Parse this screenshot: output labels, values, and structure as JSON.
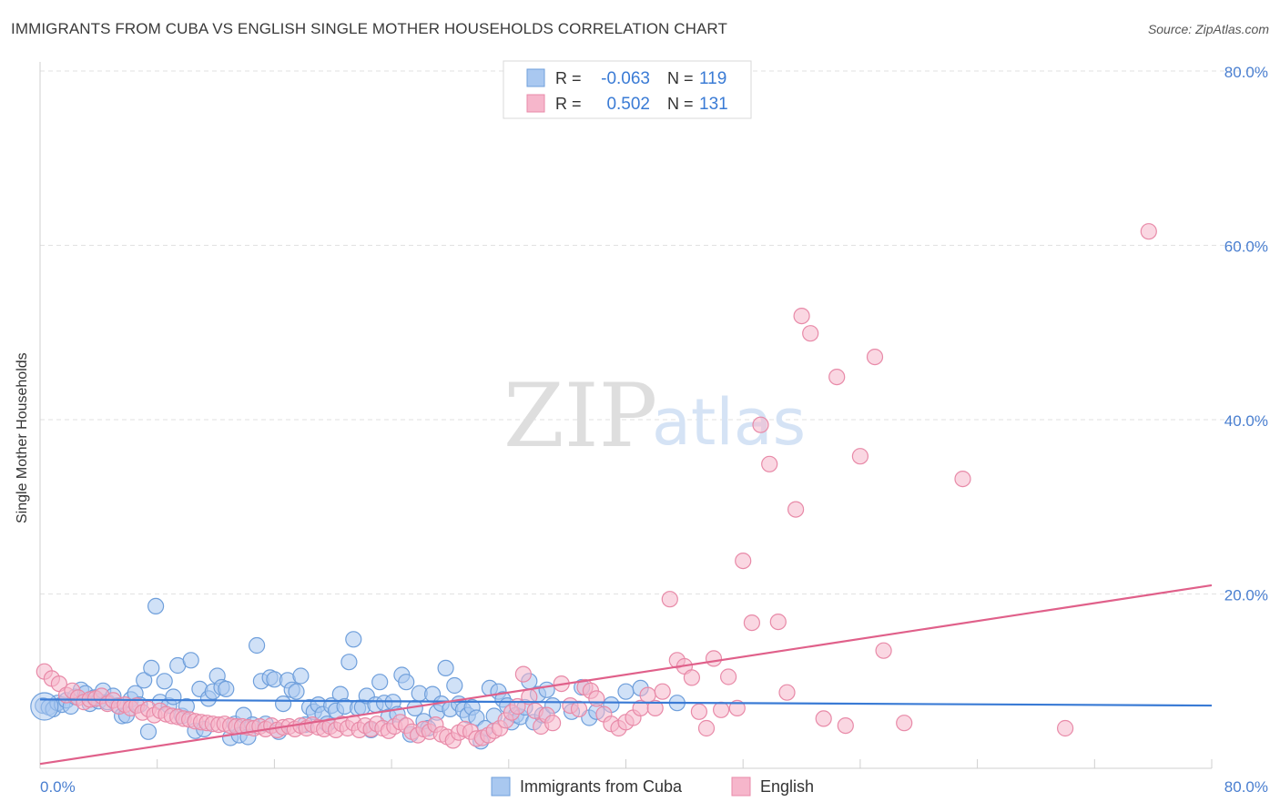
{
  "title": "IMMIGRANTS FROM CUBA VS ENGLISH SINGLE MOTHER HOUSEHOLDS CORRELATION CHART",
  "source": "Source: ZipAtlas.com",
  "watermark": {
    "zip": "ZIP",
    "atlas": "atlas"
  },
  "colors": {
    "blue_fill": "#a9c8f0",
    "blue_stroke": "#6f9fdb",
    "blue_line": "#3a7bd5",
    "pink_fill": "#f6b6cb",
    "pink_stroke": "#e88aa8",
    "pink_line": "#e0608a",
    "axis_text": "#4a7fd0",
    "grid": "#e2e2e2"
  },
  "legend": {
    "rows": [
      {
        "r_label": "R =",
        "r_value": "-0.063",
        "n_label": "N =",
        "n_value": "119"
      },
      {
        "r_label": "R =",
        "r_value": "0.502",
        "n_label": "N =",
        "n_value": "131"
      }
    ]
  },
  "bottom_legend": [
    "Immigrants from Cuba",
    "English"
  ],
  "chart_data": {
    "type": "scatter",
    "title": "IMMIGRANTS FROM CUBA VS ENGLISH SINGLE MOTHER HOUSEHOLDS CORRELATION CHART",
    "xlabel": "",
    "ylabel": "Single Mother Households",
    "xlim": [
      0,
      80
    ],
    "ylim": [
      0,
      80
    ],
    "x_ticks": [
      "0.0%",
      "80.0%"
    ],
    "y_ticks": [
      "20.0%",
      "40.0%",
      "60.0%",
      "80.0%"
    ],
    "y_tick_values": [
      20,
      40,
      60,
      80
    ],
    "legend_position": "top-center",
    "series": [
      {
        "name": "Immigrants from Cuba",
        "trend": {
          "x": [
            0,
            80
          ],
          "y": [
            7.9,
            7.2
          ]
        },
        "points": [
          [
            0.2,
            7.2
          ],
          [
            0.6,
            7.0
          ],
          [
            0.9,
            6.8
          ],
          [
            1.2,
            7.5
          ],
          [
            1.5,
            7.3
          ],
          [
            1.8,
            7.8
          ],
          [
            2.1,
            7.1
          ],
          [
            2.4,
            8.2
          ],
          [
            2.8,
            9.0
          ],
          [
            3.1,
            8.6
          ],
          [
            3.4,
            7.4
          ],
          [
            3.7,
            8.1
          ],
          [
            4.0,
            7.7
          ],
          [
            4.3,
            8.9
          ],
          [
            4.6,
            7.6
          ],
          [
            5.0,
            8.3
          ],
          [
            5.3,
            7.2
          ],
          [
            5.6,
            6.0
          ],
          [
            5.9,
            6.1
          ],
          [
            6.2,
            7.9
          ],
          [
            6.5,
            8.6
          ],
          [
            6.8,
            7.3
          ],
          [
            7.1,
            10.1
          ],
          [
            7.4,
            4.2
          ],
          [
            7.6,
            11.5
          ],
          [
            7.9,
            18.6
          ],
          [
            8.2,
            7.6
          ],
          [
            8.5,
            10.0
          ],
          [
            8.8,
            7.2
          ],
          [
            9.1,
            8.2
          ],
          [
            9.4,
            11.8
          ],
          [
            9.7,
            6.0
          ],
          [
            10.0,
            7.1
          ],
          [
            10.3,
            12.4
          ],
          [
            10.6,
            4.3
          ],
          [
            10.9,
            9.1
          ],
          [
            11.2,
            4.5
          ],
          [
            11.5,
            8.0
          ],
          [
            11.8,
            8.8
          ],
          [
            12.1,
            10.6
          ],
          [
            12.4,
            9.3
          ],
          [
            12.7,
            9.1
          ],
          [
            13.0,
            3.5
          ],
          [
            13.3,
            5.1
          ],
          [
            13.6,
            3.8
          ],
          [
            13.9,
            6.1
          ],
          [
            14.2,
            3.6
          ],
          [
            14.5,
            5.0
          ],
          [
            14.8,
            14.1
          ],
          [
            15.1,
            10.0
          ],
          [
            15.4,
            5.1
          ],
          [
            15.7,
            10.4
          ],
          [
            16.0,
            10.2
          ],
          [
            16.3,
            4.2
          ],
          [
            16.6,
            7.4
          ],
          [
            16.9,
            10.1
          ],
          [
            17.2,
            9.0
          ],
          [
            17.5,
            8.8
          ],
          [
            17.8,
            10.6
          ],
          [
            18.1,
            5.0
          ],
          [
            18.4,
            7.0
          ],
          [
            18.7,
            6.5
          ],
          [
            19.0,
            7.3
          ],
          [
            19.3,
            6.2
          ],
          [
            19.6,
            5.1
          ],
          [
            19.9,
            7.2
          ],
          [
            20.2,
            6.6
          ],
          [
            20.5,
            8.5
          ],
          [
            20.8,
            7.1
          ],
          [
            21.1,
            12.2
          ],
          [
            21.4,
            14.8
          ],
          [
            21.7,
            6.9
          ],
          [
            22.0,
            7.0
          ],
          [
            22.3,
            8.3
          ],
          [
            22.6,
            4.4
          ],
          [
            22.9,
            7.3
          ],
          [
            23.2,
            9.9
          ],
          [
            23.5,
            7.5
          ],
          [
            23.8,
            5.9
          ],
          [
            24.1,
            7.6
          ],
          [
            24.4,
            6.2
          ],
          [
            24.7,
            10.7
          ],
          [
            25.0,
            9.9
          ],
          [
            25.3,
            3.9
          ],
          [
            25.6,
            6.9
          ],
          [
            25.9,
            8.6
          ],
          [
            26.2,
            5.4
          ],
          [
            26.5,
            4.6
          ],
          [
            26.8,
            8.5
          ],
          [
            27.1,
            6.4
          ],
          [
            27.4,
            7.4
          ],
          [
            27.7,
            11.5
          ],
          [
            28.0,
            6.8
          ],
          [
            28.3,
            9.5
          ],
          [
            28.6,
            7.4
          ],
          [
            28.9,
            6.7
          ],
          [
            29.2,
            6.1
          ],
          [
            29.5,
            7.0
          ],
          [
            29.8,
            5.8
          ],
          [
            30.1,
            3.1
          ],
          [
            30.4,
            4.6
          ],
          [
            30.7,
            9.2
          ],
          [
            31.0,
            6.0
          ],
          [
            31.3,
            8.8
          ],
          [
            31.6,
            7.9
          ],
          [
            31.9,
            7.2
          ],
          [
            32.2,
            5.3
          ],
          [
            32.5,
            6.1
          ],
          [
            32.8,
            5.9
          ],
          [
            33.1,
            7.0
          ],
          [
            33.4,
            10.0
          ],
          [
            33.7,
            5.3
          ],
          [
            34.0,
            8.5
          ],
          [
            34.3,
            6.1
          ],
          [
            34.6,
            9.0
          ],
          [
            35.0,
            7.2
          ],
          [
            36.3,
            6.5
          ],
          [
            37.0,
            9.3
          ],
          [
            37.5,
            5.8
          ],
          [
            38.0,
            6.5
          ],
          [
            39.0,
            7.3
          ],
          [
            40.0,
            8.8
          ],
          [
            41.0,
            9.2
          ],
          [
            43.5,
            7.5
          ]
        ]
      },
      {
        "name": "English",
        "trend": {
          "x": [
            0,
            80
          ],
          "y": [
            0.5,
            21.0
          ]
        },
        "points": [
          [
            0.3,
            11.1
          ],
          [
            0.8,
            10.3
          ],
          [
            1.3,
            9.7
          ],
          [
            1.8,
            8.4
          ],
          [
            2.2,
            8.9
          ],
          [
            2.6,
            8.1
          ],
          [
            3.0,
            7.6
          ],
          [
            3.4,
            7.9
          ],
          [
            3.8,
            8.0
          ],
          [
            4.2,
            8.3
          ],
          [
            4.6,
            7.4
          ],
          [
            5.0,
            7.8
          ],
          [
            5.4,
            7.1
          ],
          [
            5.8,
            7.3
          ],
          [
            6.2,
            6.9
          ],
          [
            6.6,
            7.2
          ],
          [
            7.0,
            6.4
          ],
          [
            7.4,
            6.8
          ],
          [
            7.8,
            6.1
          ],
          [
            8.2,
            6.6
          ],
          [
            8.6,
            6.2
          ],
          [
            9.0,
            6.0
          ],
          [
            9.4,
            5.9
          ],
          [
            9.8,
            5.7
          ],
          [
            10.2,
            5.6
          ],
          [
            10.6,
            5.4
          ],
          [
            11.0,
            5.3
          ],
          [
            11.4,
            5.2
          ],
          [
            11.8,
            5.1
          ],
          [
            12.2,
            5.0
          ],
          [
            12.6,
            5.1
          ],
          [
            13.0,
            4.9
          ],
          [
            13.4,
            4.8
          ],
          [
            13.8,
            4.8
          ],
          [
            14.2,
            4.7
          ],
          [
            14.6,
            4.6
          ],
          [
            15.0,
            4.8
          ],
          [
            15.4,
            4.5
          ],
          [
            15.8,
            4.9
          ],
          [
            16.2,
            4.4
          ],
          [
            16.6,
            4.7
          ],
          [
            17.0,
            4.8
          ],
          [
            17.4,
            4.5
          ],
          [
            17.8,
            4.9
          ],
          [
            18.2,
            4.6
          ],
          [
            18.6,
            5.0
          ],
          [
            19.0,
            4.7
          ],
          [
            19.4,
            4.5
          ],
          [
            19.8,
            4.8
          ],
          [
            20.2,
            4.4
          ],
          [
            20.6,
            5.1
          ],
          [
            21.0,
            4.6
          ],
          [
            21.4,
            5.2
          ],
          [
            21.8,
            4.4
          ],
          [
            22.2,
            4.9
          ],
          [
            22.6,
            4.5
          ],
          [
            23.0,
            5.1
          ],
          [
            23.4,
            4.6
          ],
          [
            23.8,
            4.3
          ],
          [
            24.2,
            4.8
          ],
          [
            24.6,
            5.3
          ],
          [
            25.0,
            4.9
          ],
          [
            25.4,
            4.2
          ],
          [
            25.8,
            3.8
          ],
          [
            26.2,
            4.5
          ],
          [
            26.6,
            4.2
          ],
          [
            27.0,
            5.0
          ],
          [
            27.4,
            3.9
          ],
          [
            27.8,
            3.6
          ],
          [
            28.2,
            3.2
          ],
          [
            28.6,
            4.1
          ],
          [
            29.0,
            4.5
          ],
          [
            29.4,
            4.2
          ],
          [
            29.8,
            3.4
          ],
          [
            30.2,
            3.5
          ],
          [
            30.6,
            3.8
          ],
          [
            31.0,
            4.3
          ],
          [
            31.4,
            4.6
          ],
          [
            31.8,
            5.5
          ],
          [
            32.2,
            6.4
          ],
          [
            32.6,
            7.1
          ],
          [
            33.0,
            10.8
          ],
          [
            33.4,
            8.2
          ],
          [
            33.8,
            6.6
          ],
          [
            34.2,
            4.8
          ],
          [
            34.6,
            6.1
          ],
          [
            35.0,
            5.2
          ],
          [
            35.6,
            9.7
          ],
          [
            36.2,
            7.2
          ],
          [
            36.8,
            6.8
          ],
          [
            37.2,
            9.3
          ],
          [
            37.6,
            8.9
          ],
          [
            38.0,
            8.0
          ],
          [
            38.5,
            6.2
          ],
          [
            39.0,
            5.1
          ],
          [
            39.5,
            4.6
          ],
          [
            40.0,
            5.3
          ],
          [
            40.5,
            5.8
          ],
          [
            41.0,
            6.9
          ],
          [
            41.5,
            8.4
          ],
          [
            42.0,
            6.9
          ],
          [
            42.5,
            8.8
          ],
          [
            43.0,
            19.4
          ],
          [
            43.5,
            12.4
          ],
          [
            44.0,
            11.7
          ],
          [
            44.5,
            10.4
          ],
          [
            45.0,
            6.5
          ],
          [
            45.5,
            4.6
          ],
          [
            46.0,
            12.6
          ],
          [
            46.5,
            6.7
          ],
          [
            47.0,
            10.5
          ],
          [
            47.6,
            6.9
          ],
          [
            48.0,
            23.8
          ],
          [
            48.6,
            16.7
          ],
          [
            49.2,
            39.4
          ],
          [
            49.8,
            34.9
          ],
          [
            50.4,
            16.8
          ],
          [
            51.0,
            8.7
          ],
          [
            51.6,
            29.7
          ],
          [
            52.0,
            51.9
          ],
          [
            52.6,
            49.9
          ],
          [
            53.5,
            5.7
          ],
          [
            54.4,
            44.9
          ],
          [
            55.0,
            4.9
          ],
          [
            56.0,
            35.8
          ],
          [
            57.0,
            47.2
          ],
          [
            57.6,
            13.5
          ],
          [
            59.0,
            5.2
          ],
          [
            63.0,
            33.2
          ],
          [
            70.0,
            4.6
          ],
          [
            75.7,
            61.6
          ]
        ]
      }
    ]
  }
}
